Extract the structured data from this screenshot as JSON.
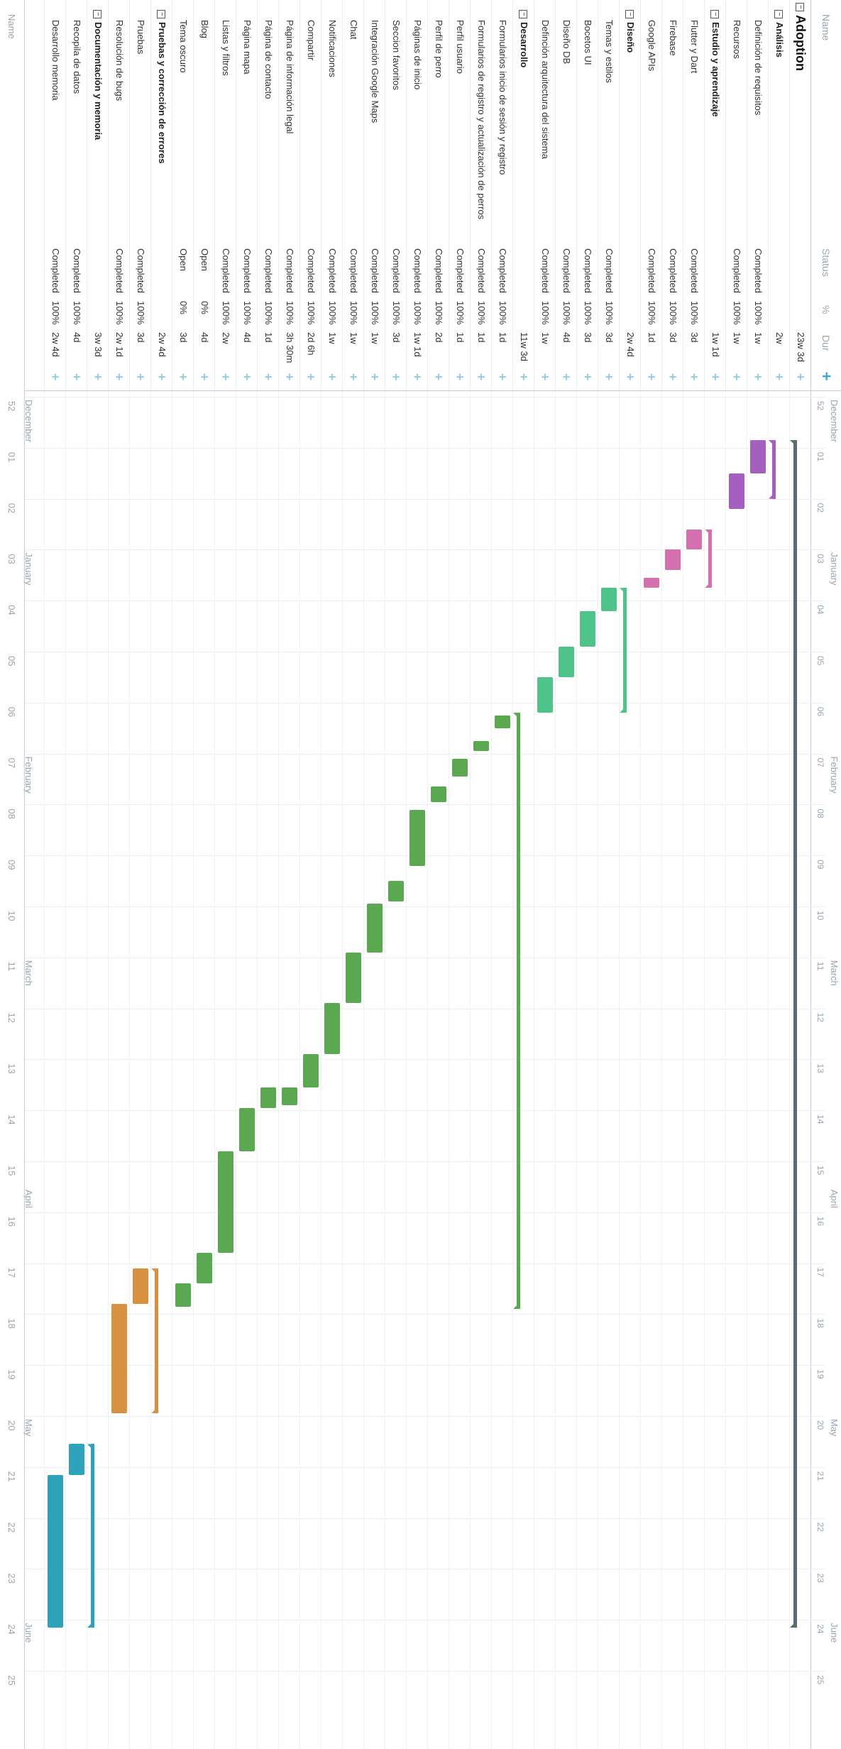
{
  "columns": {
    "name": "Name",
    "status": "Status",
    "pct": "%",
    "dur": "Dur"
  },
  "add_icon": "plus-icon",
  "rows": [
    {
      "name": "Adoption",
      "kind": "project",
      "status": "",
      "pct": "",
      "dur": "23w 3d"
    },
    {
      "name": "Análisis",
      "kind": "group",
      "status": "",
      "pct": "",
      "dur": "2w"
    },
    {
      "name": "Definición de requisitos",
      "kind": "task",
      "status": "Completed",
      "pct": "100%",
      "dur": "1w"
    },
    {
      "name": "Recursos",
      "kind": "task",
      "status": "Completed",
      "pct": "100%",
      "dur": "1w"
    },
    {
      "name": "Estudio y aprendizaje",
      "kind": "group",
      "status": "",
      "pct": "",
      "dur": "1w 1d"
    },
    {
      "name": "Flutter y Dart",
      "kind": "task",
      "status": "Completed",
      "pct": "100%",
      "dur": "3d"
    },
    {
      "name": "Firebase",
      "kind": "task",
      "status": "Completed",
      "pct": "100%",
      "dur": "3d"
    },
    {
      "name": "Google APIs",
      "kind": "task",
      "status": "Completed",
      "pct": "100%",
      "dur": "1d"
    },
    {
      "name": "Diseño",
      "kind": "group",
      "status": "",
      "pct": "",
      "dur": "2w 4d"
    },
    {
      "name": "Temas y estilos",
      "kind": "task",
      "status": "Completed",
      "pct": "100%",
      "dur": "3d"
    },
    {
      "name": "Bocetos UI",
      "kind": "task",
      "status": "Completed",
      "pct": "100%",
      "dur": "3d"
    },
    {
      "name": "Diseño DB",
      "kind": "task",
      "status": "Completed",
      "pct": "100%",
      "dur": "4d"
    },
    {
      "name": "Definción arquitectura del sistema",
      "kind": "task",
      "status": "Completed",
      "pct": "100%",
      "dur": "1w"
    },
    {
      "name": "Desarrollo",
      "kind": "group",
      "status": "",
      "pct": "",
      "dur": "11w 3d"
    },
    {
      "name": "Formularios inicio de sesión y registro",
      "kind": "task",
      "status": "Completed",
      "pct": "100%",
      "dur": "1d"
    },
    {
      "name": "Formularios de registro y actualización de perros",
      "kind": "task",
      "status": "Completed",
      "pct": "100%",
      "dur": "1d"
    },
    {
      "name": "Perfil usuario",
      "kind": "task",
      "status": "Completed",
      "pct": "100%",
      "dur": "1d"
    },
    {
      "name": "Perfil de perro",
      "kind": "task",
      "status": "Completed",
      "pct": "100%",
      "dur": "2d"
    },
    {
      "name": "Páginas de inicio",
      "kind": "task",
      "status": "Completed",
      "pct": "100%",
      "dur": "1w 1d"
    },
    {
      "name": "Seccion favoritos",
      "kind": "task",
      "status": "Completed",
      "pct": "100%",
      "dur": "3d"
    },
    {
      "name": "Integración Google Maps",
      "kind": "task",
      "status": "Completed",
      "pct": "100%",
      "dur": "1w"
    },
    {
      "name": "Chat",
      "kind": "task",
      "status": "Completed",
      "pct": "100%",
      "dur": "1w"
    },
    {
      "name": "Notificaciones",
      "kind": "task",
      "status": "Completed",
      "pct": "100%",
      "dur": "1w"
    },
    {
      "name": "Compartir",
      "kind": "task",
      "status": "Completed",
      "pct": "100%",
      "dur": "2d 6h"
    },
    {
      "name": "Página de información legal",
      "kind": "task",
      "status": "Completed",
      "pct": "100%",
      "dur": "3h 30m"
    },
    {
      "name": "Página de contacto",
      "kind": "task",
      "status": "Completed",
      "pct": "100%",
      "dur": "1d"
    },
    {
      "name": "Página mapa",
      "kind": "task",
      "status": "Completed",
      "pct": "100%",
      "dur": "4d"
    },
    {
      "name": "Listas y filtros",
      "kind": "task",
      "status": "Completed",
      "pct": "100%",
      "dur": "2w"
    },
    {
      "name": "Blog",
      "kind": "task",
      "status": "Open",
      "pct": "0%",
      "dur": "4d"
    },
    {
      "name": "Tema oscuro",
      "kind": "task",
      "status": "Open",
      "pct": "0%",
      "dur": "3d"
    },
    {
      "name": "Pruebas y corrección de errores",
      "kind": "group",
      "status": "",
      "pct": "",
      "dur": "2w 4d"
    },
    {
      "name": "Pruebas",
      "kind": "task",
      "status": "Completed",
      "pct": "100%",
      "dur": "3d"
    },
    {
      "name": "Resolución de bugs",
      "kind": "task",
      "status": "Completed",
      "pct": "100%",
      "dur": "2w 1d"
    },
    {
      "name": "Documentación y memoria",
      "kind": "group",
      "status": "",
      "pct": "",
      "dur": "3w 3d"
    },
    {
      "name": "Recopila de datos",
      "kind": "task",
      "status": "Completed",
      "pct": "100%",
      "dur": "4d"
    },
    {
      "name": "Desarrollo memoria",
      "kind": "task",
      "status": "Completed",
      "pct": "100%",
      "dur": "2w 4d"
    }
  ],
  "timeline": {
    "months": [
      {
        "label": "December",
        "week": 52
      },
      {
        "label": "January",
        "week": 3
      },
      {
        "label": "February",
        "week": 7
      },
      {
        "label": "March",
        "week": 11
      },
      {
        "label": "April",
        "week": 15.5
      },
      {
        "label": "May",
        "week": 20
      },
      {
        "label": "June",
        "week": 24
      }
    ],
    "weeks": [
      "52",
      "01",
      "02",
      "03",
      "04",
      "05",
      "06",
      "07",
      "08",
      "09",
      "10",
      "11",
      "12",
      "13",
      "14",
      "15",
      "16",
      "17",
      "18",
      "19",
      "20",
      "21",
      "22",
      "23",
      "24",
      "25"
    ]
  },
  "colors": {
    "project": "#5a6b78",
    "analisis": "#a45fbf",
    "estudio": "#d46fb0",
    "diseno": "#4ec48a",
    "desarrollo": "#5aa84f",
    "pruebas": "#d8913e",
    "doc": "#2ea2bb"
  },
  "gantt": [
    {
      "row": 0,
      "start": 0.85,
      "end": 24.15,
      "color": "project",
      "kind": "group"
    },
    {
      "row": 1,
      "start": 0.85,
      "end": 2.0,
      "color": "analisis",
      "kind": "group"
    },
    {
      "row": 2,
      "start": 0.85,
      "end": 1.5,
      "color": "analisis",
      "kind": "task"
    },
    {
      "row": 3,
      "start": 1.5,
      "end": 2.2,
      "color": "analisis",
      "kind": "task"
    },
    {
      "row": 4,
      "start": 2.6,
      "end": 3.75,
      "color": "estudio",
      "kind": "group"
    },
    {
      "row": 5,
      "start": 2.6,
      "end": 3.0,
      "color": "estudio",
      "kind": "task"
    },
    {
      "row": 6,
      "start": 3.0,
      "end": 3.4,
      "color": "estudio",
      "kind": "task"
    },
    {
      "row": 7,
      "start": 3.55,
      "end": 3.75,
      "color": "estudio",
      "kind": "task"
    },
    {
      "row": 8,
      "start": 3.75,
      "end": 6.2,
      "color": "diseno",
      "kind": "group"
    },
    {
      "row": 9,
      "start": 3.75,
      "end": 4.2,
      "color": "diseno",
      "kind": "task"
    },
    {
      "row": 10,
      "start": 4.2,
      "end": 4.9,
      "color": "diseno",
      "kind": "task"
    },
    {
      "row": 11,
      "start": 4.9,
      "end": 5.5,
      "color": "diseno",
      "kind": "task"
    },
    {
      "row": 12,
      "start": 5.5,
      "end": 6.2,
      "color": "diseno",
      "kind": "task"
    },
    {
      "row": 13,
      "start": 6.2,
      "end": 17.9,
      "color": "desarrollo",
      "kind": "group"
    },
    {
      "row": 14,
      "start": 6.25,
      "end": 6.5,
      "color": "desarrollo",
      "kind": "task"
    },
    {
      "row": 15,
      "start": 6.75,
      "end": 6.95,
      "color": "desarrollo",
      "kind": "task"
    },
    {
      "row": 16,
      "start": 7.1,
      "end": 7.45,
      "color": "desarrollo",
      "kind": "task"
    },
    {
      "row": 17,
      "start": 7.65,
      "end": 7.95,
      "color": "desarrollo",
      "kind": "task"
    },
    {
      "row": 18,
      "start": 8.1,
      "end": 9.2,
      "color": "desarrollo",
      "kind": "task"
    },
    {
      "row": 19,
      "start": 9.5,
      "end": 9.9,
      "color": "desarrollo",
      "kind": "task"
    },
    {
      "row": 20,
      "start": 9.95,
      "end": 10.9,
      "color": "desarrollo",
      "kind": "task"
    },
    {
      "row": 21,
      "start": 10.9,
      "end": 11.9,
      "color": "desarrollo",
      "kind": "task"
    },
    {
      "row": 22,
      "start": 11.9,
      "end": 12.9,
      "color": "desarrollo",
      "kind": "task"
    },
    {
      "row": 23,
      "start": 12.9,
      "end": 13.55,
      "color": "desarrollo",
      "kind": "task"
    },
    {
      "row": 24,
      "start": 13.55,
      "end": 13.9,
      "color": "desarrollo",
      "kind": "task"
    },
    {
      "row": 25,
      "start": 13.55,
      "end": 13.95,
      "color": "desarrollo",
      "kind": "task"
    },
    {
      "row": 26,
      "start": 13.95,
      "end": 14.8,
      "color": "desarrollo",
      "kind": "task"
    },
    {
      "row": 27,
      "start": 14.8,
      "end": 16.8,
      "color": "desarrollo",
      "kind": "task"
    },
    {
      "row": 28,
      "start": 16.8,
      "end": 17.4,
      "color": "desarrollo",
      "kind": "task"
    },
    {
      "row": 29,
      "start": 17.4,
      "end": 17.85,
      "color": "desarrollo",
      "kind": "task"
    },
    {
      "row": 30,
      "start": 17.1,
      "end": 19.95,
      "color": "pruebas",
      "kind": "group"
    },
    {
      "row": 31,
      "start": 17.1,
      "end": 17.8,
      "color": "pruebas",
      "kind": "task"
    },
    {
      "row": 32,
      "start": 17.8,
      "end": 19.95,
      "color": "pruebas",
      "kind": "task"
    },
    {
      "row": 33,
      "start": 20.55,
      "end": 24.15,
      "color": "doc",
      "kind": "group"
    },
    {
      "row": 34,
      "start": 20.55,
      "end": 21.15,
      "color": "doc",
      "kind": "task"
    },
    {
      "row": 35,
      "start": 21.15,
      "end": 24.15,
      "color": "doc",
      "kind": "task"
    }
  ]
}
